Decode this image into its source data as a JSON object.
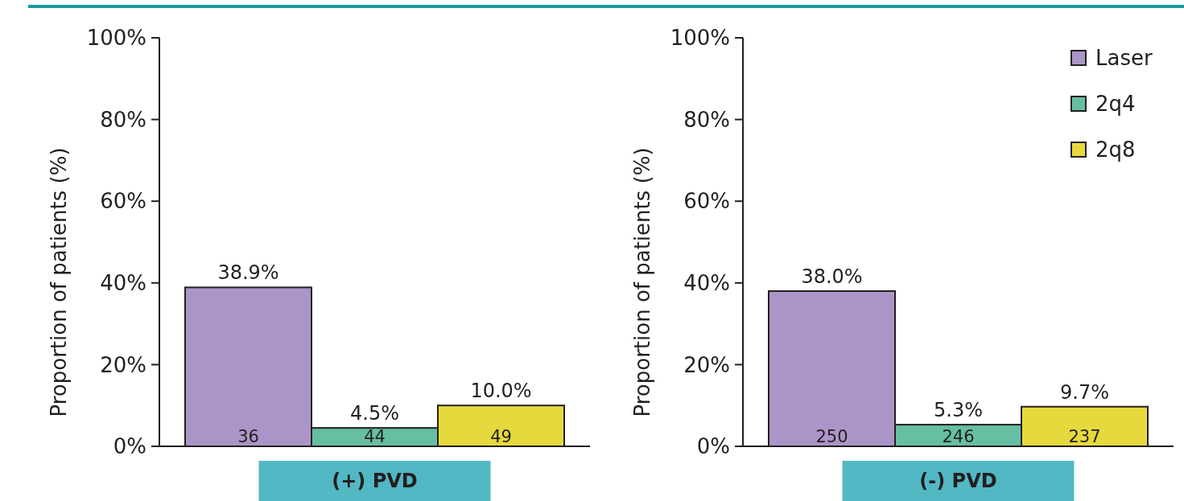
{
  "chart_data": [
    {
      "type": "bar",
      "categories": [
        "(+) PVD"
      ],
      "ylabel": "Proportion of patients (%)",
      "ylim": [
        0,
        100
      ],
      "yticks": [
        {
          "value": 0,
          "label": "0%"
        },
        {
          "value": 20,
          "label": "20%"
        },
        {
          "value": 40,
          "label": "40%"
        },
        {
          "value": 60,
          "label": "60%"
        },
        {
          "value": 80,
          "label": "80%"
        },
        {
          "value": 100,
          "label": "100%"
        }
      ],
      "legend": false,
      "series": [
        {
          "color": "#ab95c8",
          "values": [
            38.9
          ],
          "value_labels": [
            "38.9%"
          ]
        },
        {
          "color": "#66bfa3",
          "values": [
            4.5
          ],
          "value_labels": [
            "4.5%"
          ]
        },
        {
          "color": "#e6d93e",
          "values": [
            10.0
          ],
          "value_labels": [
            "10.0%"
          ]
        }
      ],
      "annotations": [
        "36",
        "44",
        "49"
      ]
    },
    {
      "type": "bar",
      "categories": [
        "(-) PVD"
      ],
      "ylabel": "Proportion of patients (%)",
      "ylim": [
        0,
        100
      ],
      "yticks": [
        {
          "value": 0,
          "label": "0%"
        },
        {
          "value": 20,
          "label": "20%"
        },
        {
          "value": 40,
          "label": "40%"
        },
        {
          "value": 60,
          "label": "60%"
        },
        {
          "value": 80,
          "label": "80%"
        },
        {
          "value": 100,
          "label": "100%"
        }
      ],
      "legend": "top right",
      "series": [
        {
          "name": "Laser",
          "color": "#ab95c8",
          "values": [
            38.0
          ],
          "value_labels": [
            "38.0%"
          ]
        },
        {
          "name": "2q4",
          "color": "#66bfa3",
          "values": [
            5.3
          ],
          "value_labels": [
            "5.3%"
          ]
        },
        {
          "name": "2q8",
          "color": "#e6d93e",
          "values": [
            9.7
          ],
          "value_labels": [
            "9.7%"
          ]
        }
      ],
      "annotations": [
        "250",
        "246",
        "237"
      ]
    }
  ]
}
